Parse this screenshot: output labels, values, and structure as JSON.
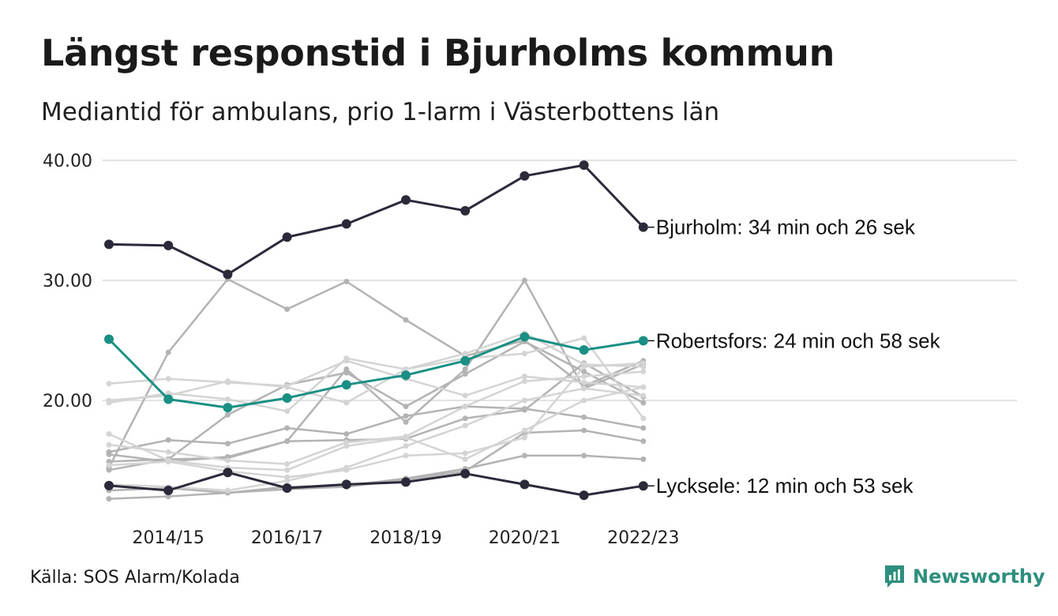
{
  "title": "Längst responstid i Bjurholms kommun",
  "subtitle": "Mediantid för ambulans, prio 1-larm i Västerbottens län",
  "source": "Källa: SOS Alarm/Kolada",
  "brand": {
    "name": "Newsworthy",
    "color": "#2e8f7e"
  },
  "colors": {
    "dark": "#2b2a3a",
    "highlight": "#1a9084",
    "grey_dark": "#b3b3b3",
    "grey_light": "#d4d4d4",
    "grid": "#e3e3e3"
  },
  "chart_data": {
    "type": "line",
    "x": [
      "2013/14",
      "2014/15",
      "2015/16",
      "2016/17",
      "2017/18",
      "2018/19",
      "2019/20",
      "2020/21",
      "2021/22",
      "2022/23"
    ],
    "x_tick_labels": [
      "2014/15",
      "2016/17",
      "2018/19",
      "2020/21",
      "2022/23"
    ],
    "y_ticks": [
      20,
      30,
      40
    ],
    "y_tick_labels": [
      "20.00",
      "30.00",
      "40.00"
    ],
    "ylim": [
      11,
      41
    ],
    "grid": true,
    "highlighted": [
      {
        "name": "Bjurholm",
        "label": "Bjurholm: 34 min och 26 sek",
        "color": "#2b2a3a",
        "values": [
          33.0,
          32.9,
          30.5,
          33.6,
          34.7,
          36.7,
          35.8,
          38.7,
          39.6,
          34.43
        ]
      },
      {
        "name": "Robertsfors",
        "label": "Robertsfors: 24 min och 58 sek",
        "color": "#1a9084",
        "values": [
          25.1,
          20.1,
          19.4,
          20.2,
          21.3,
          22.1,
          23.3,
          25.3,
          24.2,
          24.97
        ]
      },
      {
        "name": "Lycksele",
        "label": "Lycksele: 12 min och 53 sek",
        "color": "#2b2a3a",
        "values": [
          12.9,
          12.5,
          14.0,
          12.7,
          13.0,
          13.2,
          13.9,
          13.0,
          12.1,
          12.88
        ]
      }
    ],
    "background_series": [
      {
        "color": "#b3b3b3",
        "values": [
          14.4,
          24.0,
          30.1,
          27.6,
          29.9,
          26.7,
          23.7,
          25.0,
          21.2,
          23.3
        ]
      },
      {
        "color": "#b3b3b3",
        "values": [
          15.5,
          14.9,
          15.3,
          16.6,
          22.6,
          18.2,
          22.6,
          30.0,
          21.0,
          23.0
        ]
      },
      {
        "color": "#b3b3b3",
        "values": [
          14.9,
          15.1,
          15.2,
          16.6,
          16.7,
          16.8,
          18.5,
          19.2,
          23.1,
          20.3
        ]
      },
      {
        "color": "#b3b3b3",
        "values": [
          15.7,
          16.7,
          16.4,
          17.7,
          17.2,
          18.7,
          19.5,
          19.3,
          18.6,
          17.7
        ]
      },
      {
        "color": "#b3b3b3",
        "values": [
          14.2,
          15.1,
          18.8,
          21.3,
          22.3,
          19.5,
          22.2,
          24.9,
          22.4,
          19.8
        ]
      },
      {
        "color": "#b3b3b3",
        "values": [
          12.5,
          12.7,
          12.3,
          12.8,
          12.9,
          13.5,
          14.3,
          15.4,
          15.4,
          15.1
        ]
      },
      {
        "color": "#b3b3b3",
        "values": [
          11.8,
          12.0,
          12.3,
          12.6,
          12.8,
          13.4,
          14.1,
          17.3,
          17.5,
          16.6
        ]
      },
      {
        "color": "#d4d4d4",
        "values": [
          21.4,
          21.8,
          21.5,
          21.2,
          23.3,
          21.8,
          20.4,
          22.0,
          21.5,
          21.1
        ]
      },
      {
        "color": "#d4d4d4",
        "values": [
          20.0,
          20.4,
          21.6,
          21.1,
          19.8,
          22.6,
          23.5,
          23.9,
          25.2,
          18.5
        ]
      },
      {
        "color": "#d4d4d4",
        "values": [
          19.8,
          20.6,
          20.1,
          19.1,
          23.5,
          22.6,
          23.9,
          25.6,
          23.0,
          22.8
        ]
      },
      {
        "color": "#d4d4d4",
        "values": [
          17.2,
          15.0,
          14.4,
          14.2,
          16.2,
          16.9,
          15.1,
          17.5,
          20.0,
          21.1
        ]
      },
      {
        "color": "#d4d4d4",
        "values": [
          13.0,
          12.8,
          12.5,
          13.3,
          14.4,
          16.2,
          17.9,
          20.0,
          21.0,
          20.4
        ]
      },
      {
        "color": "#d4d4d4",
        "values": [
          14.6,
          14.9,
          14.1,
          13.6,
          14.2,
          15.4,
          15.6,
          16.9,
          22.8,
          23.1
        ]
      },
      {
        "color": "#d4d4d4",
        "values": [
          16.3,
          15.7,
          15.0,
          14.7,
          16.5,
          17.0,
          19.5,
          21.6,
          22.0,
          22.4
        ]
      }
    ]
  }
}
